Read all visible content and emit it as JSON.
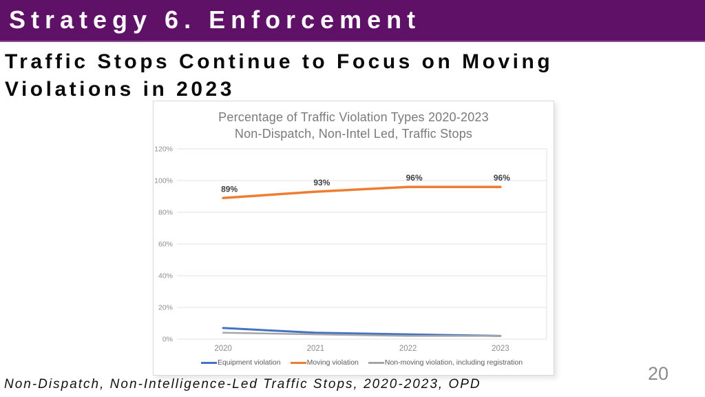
{
  "slide": {
    "banner_title": "Strategy 6. Enforcement",
    "title_lines": [
      "Traffic Stops Continue to Focus on Moving",
      "Violations in 2023"
    ],
    "footnote": "Non-Dispatch, Non-Intelligence-Led Traffic Stops, 2020-2023, OPD",
    "page_number": "20"
  },
  "colors": {
    "banner_purple": "#5E1166",
    "equipment_blue": "#4472C4",
    "moving_orange": "#ED7D31",
    "nonmoving_gray": "#A6A6A6",
    "chart_text_gray": "#8c8c8c",
    "gridline_gray": "#e0e0e0",
    "data_label_color": "#3f3f3f"
  },
  "chart_data": {
    "type": "line",
    "title_line1": "Percentage of Traffic Violation Types 2020-2023",
    "title_line2": "Non-Dispatch, Non-Intel Led, Traffic Stops",
    "categories": [
      "2020",
      "2021",
      "2022",
      "2023"
    ],
    "series": [
      {
        "name": "Equipment violation",
        "color": "#4472C4",
        "values": [
          7,
          4,
          3,
          2
        ]
      },
      {
        "name": "Moving violation",
        "color": "#ED7D31",
        "values": [
          89,
          93,
          96,
          96
        ],
        "data_labels": [
          "89%",
          "93%",
          "96%",
          "96%"
        ]
      },
      {
        "name": "Non-moving violation, including registration",
        "color": "#A6A6A6",
        "values": [
          4,
          3,
          2,
          2
        ]
      }
    ],
    "y_ticks": [
      "0%",
      "20%",
      "40%",
      "60%",
      "80%",
      "100%",
      "120%"
    ],
    "ylim": [
      0,
      120
    ],
    "grid": true,
    "legend_position": "bottom"
  }
}
